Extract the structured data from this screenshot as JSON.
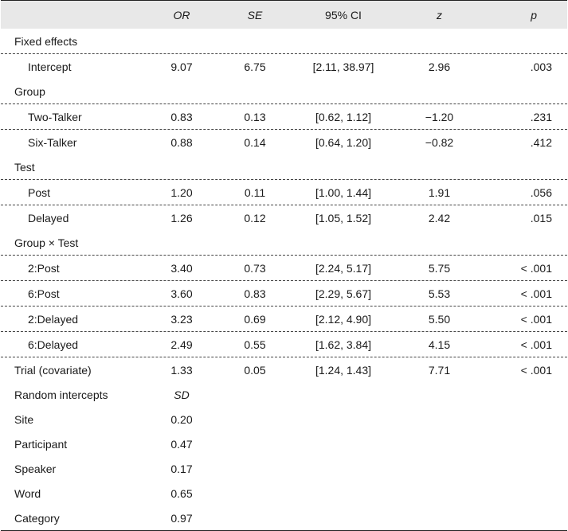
{
  "header": {
    "stub": "",
    "or": "OR",
    "se": "SE",
    "ci": "95% CI",
    "z": "z",
    "p": "p"
  },
  "rows": [
    {
      "label": "Fixed effects",
      "indent": false,
      "or": "",
      "se": "",
      "ci": "",
      "z": "",
      "p": ""
    },
    {
      "label": "Intercept",
      "indent": true,
      "or": "9.07",
      "se": "6.75",
      "ci": "[2.11, 38.97]",
      "z": "2.96",
      "p": ".003"
    },
    {
      "label": "Group",
      "indent": false,
      "or": "",
      "se": "",
      "ci": "",
      "z": "",
      "p": ""
    },
    {
      "label": "Two-Talker",
      "indent": true,
      "or": "0.83",
      "se": "0.13",
      "ci": "[0.62, 1.12]",
      "z": "−1.20",
      "p": ".231"
    },
    {
      "label": "Six-Talker",
      "indent": true,
      "or": "0.88",
      "se": "0.14",
      "ci": "[0.64, 1.20]",
      "z": "−0.82",
      "p": ".412"
    },
    {
      "label": "Test",
      "indent": false,
      "or": "",
      "se": "",
      "ci": "",
      "z": "",
      "p": ""
    },
    {
      "label": "Post",
      "indent": true,
      "or": "1.20",
      "se": "0.11",
      "ci": "[1.00, 1.44]",
      "z": "1.91",
      "p": ".056"
    },
    {
      "label": "Delayed",
      "indent": true,
      "or": "1.26",
      "se": "0.12",
      "ci": "[1.05, 1.52]",
      "z": "2.42",
      "p": ".015"
    },
    {
      "label": "Group × Test",
      "indent": false,
      "or": "",
      "se": "",
      "ci": "",
      "z": "",
      "p": ""
    },
    {
      "label": "2:Post",
      "indent": true,
      "or": "3.40",
      "se": "0.73",
      "ci": "[2.24, 5.17]",
      "z": "5.75",
      "p": "< .001"
    },
    {
      "label": "6:Post",
      "indent": true,
      "or": "3.60",
      "se": "0.83",
      "ci": "[2.29, 5.67]",
      "z": "5.53",
      "p": "< .001"
    },
    {
      "label": "2:Delayed",
      "indent": true,
      "or": "3.23",
      "se": "0.69",
      "ci": "[2.12, 4.90]",
      "z": "5.50",
      "p": "< .001"
    },
    {
      "label": "6:Delayed",
      "indent": true,
      "or": "2.49",
      "se": "0.55",
      "ci": "[1.62, 3.84]",
      "z": "4.15",
      "p": "< .001"
    },
    {
      "label": "Trial (covariate)",
      "indent": false,
      "or": "1.33",
      "se": "0.05",
      "ci": "[1.24, 1.43]",
      "z": "7.71",
      "p": "< .001"
    },
    {
      "label": "Random intercepts",
      "indent": false,
      "or": "SD",
      "se": "",
      "ci": "",
      "z": "",
      "p": ""
    },
    {
      "label": "Site",
      "indent": false,
      "or": "0.20",
      "se": "",
      "ci": "",
      "z": "",
      "p": ""
    },
    {
      "label": "Participant",
      "indent": false,
      "or": "0.47",
      "se": "",
      "ci": "",
      "z": "",
      "p": ""
    },
    {
      "label": "Speaker",
      "indent": false,
      "or": "0.17",
      "se": "",
      "ci": "",
      "z": "",
      "p": ""
    },
    {
      "label": "Word",
      "indent": false,
      "or": "0.65",
      "se": "",
      "ci": "",
      "z": "",
      "p": ""
    },
    {
      "label": "Category",
      "indent": false,
      "or": "0.97",
      "se": "",
      "ci": "",
      "z": "",
      "p": ""
    }
  ]
}
